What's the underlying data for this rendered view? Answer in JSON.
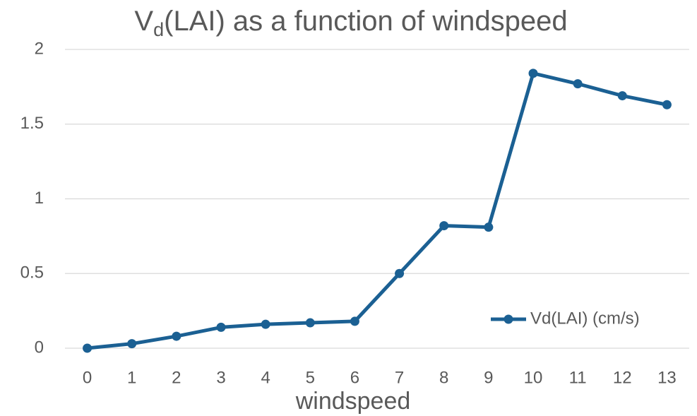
{
  "chart_data": {
    "type": "line",
    "title": [
      "V",
      "d",
      "(LAI) as a function of windspeed"
    ],
    "x_label": "windspeed",
    "categories": [
      "0",
      "1",
      "2",
      "3",
      "4",
      "5",
      "6",
      "7",
      "8",
      "9",
      "10",
      "11",
      "12",
      "13"
    ],
    "series": [
      {
        "name": "Vd(LAI) (cm/s)",
        "color": "#1b6093",
        "values": [
          0,
          0.03,
          0.08,
          0.14,
          0.16,
          0.17,
          0.18,
          0.5,
          0.82,
          0.81,
          1.84,
          1.77,
          1.69,
          1.63
        ]
      }
    ],
    "ylim": [
      0,
      2
    ],
    "yticks": [
      0,
      0.5,
      1,
      1.5,
      2
    ],
    "grid": true,
    "legend": "right"
  }
}
